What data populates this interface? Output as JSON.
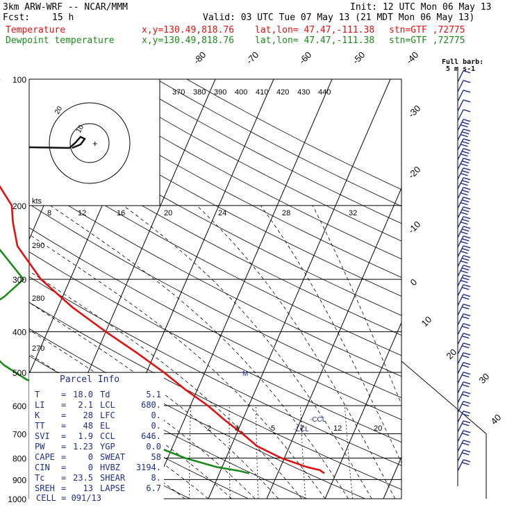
{
  "header": {
    "model": "3km ARW-WRF -- NCAR/MMM",
    "init": "Init: 12 UTC Mon 06 May 13",
    "fcst_label": "Fcst:",
    "fcst_value": "15 h",
    "valid": "Valid: 03 UTC Tue 07 May 13 (21 MDT Mon 06 May 13)"
  },
  "legend": [
    {
      "name": "Temperature",
      "color": "#e01010",
      "xy": "x,y=130.49,818.76",
      "latlon": "lat,lon= 47.47,-111.38",
      "stn": "stn=GTF ,72775"
    },
    {
      "name": "Dewpoint temperature",
      "color": "#1a8a1a",
      "xy": "x,y=130.49,818.76",
      "latlon": "lat,lon= 47.47,-111.38",
      "stn": "stn=GTF ,72775"
    }
  ],
  "barb_key": {
    "line1": "Full barb:",
    "line2": "5 m s-1"
  },
  "hodograph": {
    "units": "kts",
    "ring_labels": [
      "10",
      "20"
    ]
  },
  "parcel_info": {
    "title": "Parcel Info",
    "rows": [
      {
        "a_label": "T",
        "a_value": "18.0",
        "b_label": "Td",
        "b_value": "5.1"
      },
      {
        "a_label": "LI",
        "a_value": "2.1",
        "b_label": "LCL",
        "b_value": "680."
      },
      {
        "a_label": "K",
        "a_value": "28",
        "b_label": "LFC",
        "b_value": "0."
      },
      {
        "a_label": "TT",
        "a_value": "48",
        "b_label": "EL",
        "b_value": "0."
      },
      {
        "a_label": "SVI",
        "a_value": "1.9",
        "b_label": "CCL",
        "b_value": "646."
      },
      {
        "a_label": "PW",
        "a_value": "1.23",
        "b_label": "YGP",
        "b_value": "0.0"
      },
      {
        "a_label": "CAPE",
        "a_value": "0",
        "b_label": "SWEAT",
        "b_value": "58"
      },
      {
        "a_label": "CIN",
        "a_value": "0",
        "b_label": "HVBZ",
        "b_value": "3194."
      },
      {
        "a_label": "Tc",
        "a_value": "23.5",
        "b_label": "SHEAR",
        "b_value": "8."
      },
      {
        "a_label": "SREH",
        "a_value": "13",
        "b_label": "LAPSE",
        "b_value": "6.7"
      }
    ],
    "cell": "CELL = 091/13"
  },
  "colors": {
    "temperature": "#e01010",
    "dewpoint": "#1a8a1a",
    "panel_text": "#1f2d8a",
    "barbs": "#1f2d8a",
    "grid": "#000000"
  },
  "chart_data": {
    "type": "line",
    "title": "",
    "xlabel": "",
    "ylabel": "",
    "y_scale": "log",
    "pressure_levels": [
      "100",
      "200",
      "300",
      "400",
      "500",
      "600",
      "700",
      "800",
      "900",
      "1000"
    ],
    "isotherm_labels": [
      "-80",
      "-70",
      "-60",
      "-50",
      "-40",
      "-30",
      "-20",
      "-10",
      "0",
      "10",
      "20",
      "30",
      "40"
    ],
    "theta_labels_top": [
      "370",
      "380",
      "390",
      "400",
      "410",
      "420",
      "430",
      "440"
    ],
    "theta_labels_left": [
      "290",
      "280",
      "270"
    ],
    "theta_e_labels": [
      "8",
      "12",
      "16",
      "20",
      "24",
      "28",
      "32"
    ],
    "mixing_ratio_labels": [
      "2",
      "3",
      "5",
      "7",
      "12",
      "20"
    ],
    "annotations": [
      "CCL",
      "LCL",
      "M"
    ],
    "series": [
      {
        "name": "Temperature",
        "pressure": [
          870,
          855,
          840,
          800,
          750,
          700,
          650,
          600,
          550,
          500,
          450,
          400,
          350,
          300,
          250,
          220,
          200,
          180,
          160,
          140,
          120,
          100
        ],
        "values": [
          18.0,
          17.0,
          14.5,
          9.5,
          4.5,
          1.0,
          -3.0,
          -7.0,
          -12.0,
          -17.0,
          -23.0,
          -30.0,
          -37.5,
          -45.0,
          -51.5,
          -54.0,
          -55.5,
          -59.0,
          -62.0,
          -64.5,
          -66.0,
          -67.0
        ]
      },
      {
        "name": "Dewpoint temperature",
        "pressure": [
          870,
          860,
          840,
          800,
          750,
          700,
          670,
          650,
          620,
          590,
          560,
          520,
          480,
          440,
          400,
          360,
          330,
          300,
          250,
          200,
          150,
          100
        ],
        "values": [
          5.1,
          3.5,
          -1.0,
          -7.0,
          -13.0,
          -18.0,
          -20.0,
          -21.0,
          -23.0,
          -28.0,
          -33.0,
          -40.0,
          -45.0,
          -49.0,
          -56.0,
          -53.0,
          -50.0,
          -48.0,
          -55.0,
          -62.0,
          -72.0,
          -81.0
        ]
      }
    ]
  }
}
